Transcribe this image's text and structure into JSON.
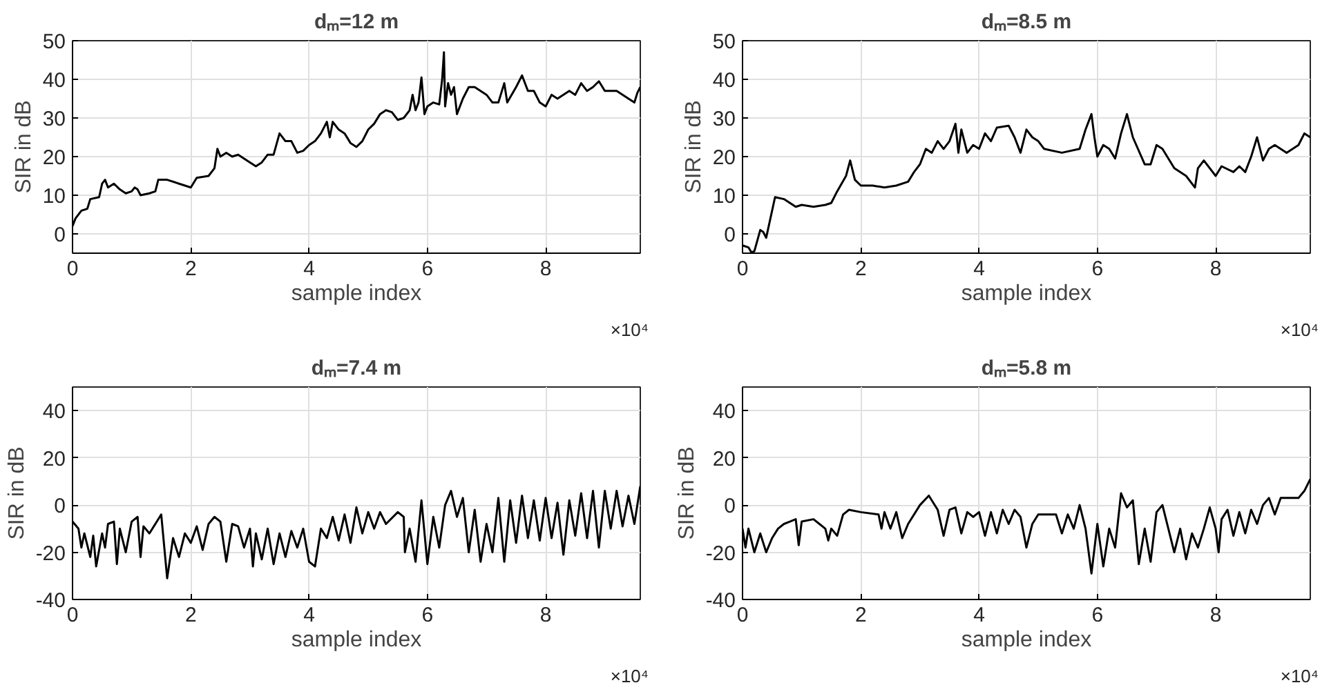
{
  "chart_data": [
    {
      "type": "line",
      "title": "dₘ=12 m",
      "xlabel": "sample index",
      "ylabel": "SIR in dB",
      "annotations": [
        "×10⁴"
      ],
      "color": "#000000",
      "grid": true,
      "xlim": [
        0,
        9.6
      ],
      "ylim": [
        -5,
        50
      ],
      "xticks": [
        0,
        2,
        4,
        6,
        8
      ],
      "yticks": [
        0,
        10,
        20,
        30,
        40,
        50
      ],
      "x": [
        0,
        0.05,
        0.15,
        0.25,
        0.3,
        0.45,
        0.5,
        0.55,
        0.6,
        0.7,
        0.8,
        0.9,
        1.0,
        1.05,
        1.1,
        1.15,
        1.3,
        1.4,
        1.45,
        1.6,
        1.8,
        2.0,
        2.1,
        2.3,
        2.4,
        2.45,
        2.5,
        2.6,
        2.7,
        2.8,
        3.0,
        3.1,
        3.2,
        3.3,
        3.4,
        3.5,
        3.6,
        3.7,
        3.8,
        3.9,
        4.0,
        4.1,
        4.2,
        4.3,
        4.35,
        4.4,
        4.5,
        4.6,
        4.7,
        4.8,
        4.9,
        5.0,
        5.1,
        5.2,
        5.3,
        5.4,
        5.5,
        5.6,
        5.7,
        5.75,
        5.8,
        5.85,
        5.9,
        5.95,
        6.0,
        6.1,
        6.2,
        6.25,
        6.28,
        6.3,
        6.35,
        6.4,
        6.45,
        6.5,
        6.6,
        6.7,
        6.8,
        7.0,
        7.1,
        7.2,
        7.3,
        7.35,
        7.5,
        7.6,
        7.7,
        7.8,
        7.9,
        8.0,
        8.1,
        8.2,
        8.4,
        8.5,
        8.6,
        8.7,
        8.8,
        8.9,
        9.0,
        9.2,
        9.4,
        9.5,
        9.55,
        9.6
      ],
      "values": [
        2,
        4,
        6,
        6.5,
        9,
        9.5,
        13,
        14,
        12,
        13,
        11.5,
        10.5,
        11,
        12,
        11.5,
        10,
        10.5,
        11,
        14,
        14,
        13,
        12,
        14.5,
        15,
        17,
        22,
        20,
        21,
        20,
        20.5,
        18.5,
        17.5,
        18.5,
        20.5,
        20.5,
        26,
        24,
        24,
        21,
        21.5,
        23,
        24,
        26,
        29,
        25,
        29,
        27,
        26,
        23.5,
        22.5,
        24,
        27,
        28.5,
        31,
        32,
        31.5,
        29.5,
        30,
        32,
        36,
        32,
        34,
        40.5,
        31,
        33,
        34,
        33.5,
        40,
        47,
        33,
        39,
        36,
        38,
        31,
        35,
        38,
        38,
        36,
        34,
        34,
        39,
        34,
        38,
        41,
        37,
        37,
        34,
        33,
        36,
        35,
        37,
        36,
        39,
        37,
        38,
        39.5,
        37,
        37,
        35,
        34,
        36.5,
        38
      ]
    },
    {
      "type": "line",
      "title": "dₘ=8.5 m",
      "xlabel": "sample index",
      "ylabel": "SIR in dB",
      "annotations": [
        "×10⁴"
      ],
      "color": "#000000",
      "grid": true,
      "xlim": [
        0,
        9.6
      ],
      "ylim": [
        -5,
        50
      ],
      "xticks": [
        0,
        2,
        4,
        6,
        8
      ],
      "yticks": [
        0,
        10,
        20,
        30,
        40,
        50
      ],
      "x": [
        0,
        0.1,
        0.15,
        0.2,
        0.3,
        0.35,
        0.4,
        0.5,
        0.55,
        0.7,
        0.9,
        1.0,
        1.2,
        1.4,
        1.5,
        1.6,
        1.75,
        1.82,
        1.9,
        2.0,
        2.2,
        2.4,
        2.6,
        2.8,
        2.9,
        3.0,
        3.1,
        3.2,
        3.3,
        3.4,
        3.5,
        3.6,
        3.65,
        3.7,
        3.8,
        3.9,
        4.0,
        4.1,
        4.2,
        4.3,
        4.5,
        4.6,
        4.7,
        4.8,
        4.9,
        5.0,
        5.1,
        5.4,
        5.7,
        5.8,
        5.9,
        5.95,
        6.0,
        6.1,
        6.2,
        6.3,
        6.4,
        6.5,
        6.6,
        6.8,
        6.9,
        7.0,
        7.1,
        7.3,
        7.5,
        7.65,
        7.7,
        7.8,
        8.0,
        8.1,
        8.3,
        8.4,
        8.5,
        8.6,
        8.7,
        8.8,
        8.9,
        9.0,
        9.2,
        9.4,
        9.5,
        9.6
      ],
      "values": [
        -3,
        -3.5,
        -4.8,
        -4.5,
        1,
        0.5,
        -1,
        6,
        9.5,
        9,
        7,
        7.5,
        7,
        7.5,
        8,
        11,
        15,
        19,
        14,
        12.5,
        12.5,
        12,
        12.5,
        13.5,
        16,
        18,
        22,
        21,
        24,
        22,
        24,
        28.5,
        21,
        27,
        21,
        23,
        22,
        26,
        24,
        27.5,
        28,
        25,
        21,
        27,
        25,
        24,
        22,
        21,
        22,
        27,
        31,
        25,
        20,
        23,
        22,
        19.5,
        26,
        31,
        25,
        18,
        18,
        23,
        22,
        17,
        15,
        12,
        17,
        19,
        15,
        17.5,
        16,
        17.5,
        16,
        20,
        25,
        19,
        22,
        23,
        21,
        23,
        26,
        25
      ]
    },
    {
      "type": "line",
      "title": "dₘ=7.4 m",
      "xlabel": "sample index",
      "ylabel": "SIR in dB",
      "annotations": [
        "×10⁴"
      ],
      "color": "#000000",
      "grid": true,
      "xlim": [
        0,
        9.6
      ],
      "ylim": [
        -40,
        50
      ],
      "xticks": [
        0,
        2,
        4,
        6,
        8
      ],
      "yticks": [
        -40,
        -20,
        0,
        20,
        40
      ],
      "x": [
        0,
        0.1,
        0.15,
        0.2,
        0.3,
        0.35,
        0.4,
        0.5,
        0.55,
        0.6,
        0.7,
        0.75,
        0.8,
        0.9,
        1.0,
        1.1,
        1.15,
        1.2,
        1.3,
        1.4,
        1.5,
        1.6,
        1.7,
        1.8,
        1.9,
        2.0,
        2.1,
        2.2,
        2.3,
        2.4,
        2.5,
        2.6,
        2.7,
        2.8,
        2.9,
        3.0,
        3.05,
        3.1,
        3.2,
        3.3,
        3.4,
        3.5,
        3.6,
        3.7,
        3.8,
        3.9,
        4.0,
        4.1,
        4.2,
        4.3,
        4.4,
        4.5,
        4.6,
        4.7,
        4.8,
        4.9,
        5.0,
        5.1,
        5.2,
        5.3,
        5.5,
        5.6,
        5.62,
        5.7,
        5.8,
        5.9,
        6.0,
        6.1,
        6.2,
        6.3,
        6.4,
        6.5,
        6.6,
        6.7,
        6.8,
        6.9,
        7.0,
        7.1,
        7.2,
        7.3,
        7.4,
        7.5,
        7.6,
        7.7,
        7.8,
        7.9,
        8.0,
        8.1,
        8.2,
        8.3,
        8.4,
        8.5,
        8.6,
        8.7,
        8.8,
        8.9,
        9.0,
        9.1,
        9.2,
        9.3,
        9.4,
        9.5,
        9.6
      ],
      "values": [
        -7,
        -10,
        -18,
        -12,
        -22,
        -13,
        -26,
        -12,
        -18,
        -8,
        -7,
        -25,
        -10,
        -20,
        -7,
        -5,
        -22,
        -9,
        -12,
        -8,
        -4,
        -31,
        -14,
        -22,
        -12,
        -16,
        -9,
        -19,
        -8,
        -5,
        -7,
        -24,
        -8,
        -9,
        -18,
        -10,
        -26,
        -12,
        -23,
        -10,
        -25,
        -12,
        -22,
        -11,
        -18,
        -10,
        -24,
        -26,
        -10,
        -14,
        -5,
        -15,
        -4,
        -16,
        -1,
        -12,
        -3,
        -10,
        -3,
        -8,
        -3,
        -5,
        -20,
        -10,
        -24,
        2,
        -25,
        -5,
        -18,
        0,
        6,
        -5,
        3,
        -20,
        -2,
        -24,
        -8,
        -20,
        3,
        -24,
        2,
        -16,
        4,
        -14,
        2,
        -15,
        3,
        -14,
        1,
        -21,
        2,
        -13,
        5,
        -14,
        6,
        -18,
        6,
        -10,
        6,
        -9,
        4,
        -8,
        8
      ]
    },
    {
      "type": "line",
      "title": "dₘ=5.8 m",
      "xlabel": "sample index",
      "ylabel": "SIR in dB",
      "annotations": [
        "×10⁴"
      ],
      "color": "#000000",
      "grid": true,
      "xlim": [
        0,
        9.6
      ],
      "ylim": [
        -40,
        50
      ],
      "xticks": [
        0,
        2,
        4,
        6,
        8
      ],
      "yticks": [
        -40,
        -20,
        0,
        20,
        40
      ],
      "x": [
        0,
        0.05,
        0.1,
        0.2,
        0.3,
        0.4,
        0.5,
        0.6,
        0.7,
        0.8,
        0.9,
        0.95,
        1.0,
        1.2,
        1.3,
        1.4,
        1.45,
        1.5,
        1.6,
        1.7,
        1.8,
        2.0,
        2.3,
        2.35,
        2.4,
        2.5,
        2.6,
        2.7,
        2.8,
        3.0,
        3.15,
        3.3,
        3.4,
        3.5,
        3.6,
        3.7,
        3.8,
        3.9,
        4.0,
        4.1,
        4.2,
        4.3,
        4.4,
        4.5,
        4.6,
        4.7,
        4.8,
        4.9,
        5.0,
        5.3,
        5.4,
        5.5,
        5.6,
        5.7,
        5.8,
        5.9,
        6.0,
        6.1,
        6.2,
        6.3,
        6.4,
        6.5,
        6.6,
        6.7,
        6.8,
        6.9,
        7.0,
        7.1,
        7.2,
        7.3,
        7.4,
        7.5,
        7.6,
        7.7,
        7.8,
        7.9,
        8.0,
        8.05,
        8.1,
        8.2,
        8.3,
        8.4,
        8.5,
        8.6,
        8.7,
        8.8,
        8.9,
        9.0,
        9.1,
        9.3,
        9.4,
        9.5,
        9.6
      ],
      "values": [
        -10,
        -18,
        -10,
        -20,
        -12,
        -20,
        -14,
        -10,
        -8,
        -7,
        -6,
        -17,
        -7,
        -6,
        -8,
        -10,
        -15,
        -10,
        -13,
        -4,
        -2,
        -3,
        -4,
        -10,
        -3,
        -10,
        -3,
        -14,
        -8,
        0,
        4,
        -2,
        -13,
        -2,
        -1,
        -12,
        -3,
        -5,
        -3,
        -13,
        -3,
        -12,
        -2,
        -8,
        -2,
        -5,
        -18,
        -8,
        -4,
        -4,
        -12,
        -4,
        -10,
        0,
        -10,
        -29,
        -8,
        -26,
        -10,
        -18,
        5,
        -1,
        2,
        -25,
        -10,
        -24,
        -3,
        0,
        -10,
        -20,
        -10,
        -23,
        -12,
        -18,
        -10,
        -1,
        -10,
        -20,
        -6,
        -2,
        -13,
        -3,
        -12,
        -2,
        -8,
        0,
        3,
        -4,
        3,
        3,
        3,
        6,
        11
      ]
    }
  ]
}
